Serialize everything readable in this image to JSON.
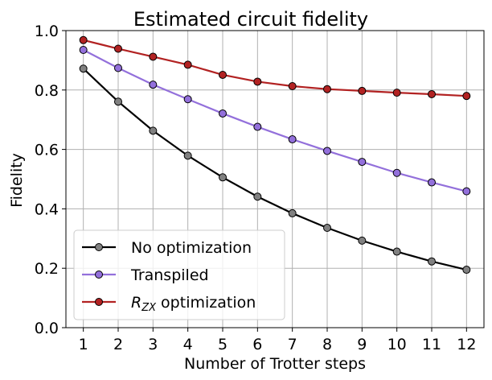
{
  "chart_data": {
    "type": "line",
    "title": "Estimated circuit fidelity",
    "xlabel": "Number of Trotter steps",
    "ylabel": "Fidelity",
    "x": [
      1,
      2,
      3,
      4,
      5,
      6,
      7,
      8,
      9,
      10,
      11,
      12
    ],
    "xlim": [
      0.5,
      12.5
    ],
    "ylim": [
      0.0,
      1.0
    ],
    "yticks": [
      "0.0",
      "0.2",
      "0.4",
      "0.6",
      "0.8",
      "1.0"
    ],
    "grid": true,
    "legend_position": "lower-left",
    "series": [
      {
        "name": "No optimization",
        "color": "#000000",
        "marker_color": "#808080",
        "values": [
          0.872,
          0.761,
          0.663,
          0.579,
          0.506,
          0.441,
          0.385,
          0.336,
          0.293,
          0.256,
          0.223,
          0.195
        ]
      },
      {
        "name": "Transpiled",
        "color": "#9370db",
        "marker_color": "#9370db",
        "values": [
          0.935,
          0.874,
          0.818,
          0.769,
          0.721,
          0.676,
          0.634,
          0.595,
          0.558,
          0.521,
          0.489,
          0.459
        ]
      },
      {
        "name": "R_ZX optimization",
        "color": "#b22222",
        "marker_color": "#b22222",
        "values": [
          0.968,
          0.939,
          0.912,
          0.885,
          0.851,
          0.828,
          0.813,
          0.803,
          0.797,
          0.791,
          0.786,
          0.78
        ]
      }
    ]
  }
}
